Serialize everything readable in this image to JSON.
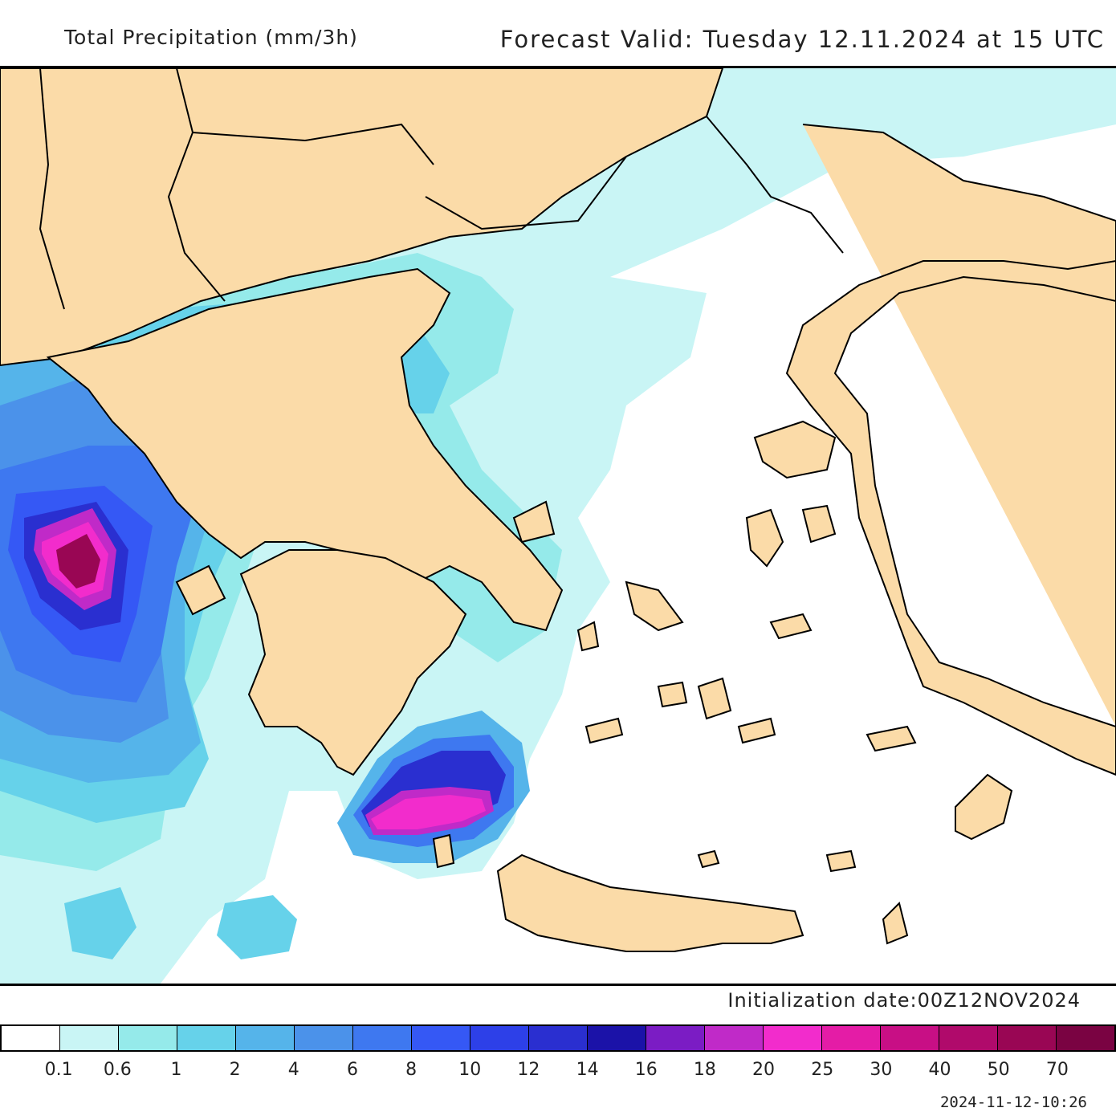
{
  "header": {
    "product_title": "Total Precipitation (mm/3h)",
    "forecast_valid": "Forecast Valid:  Tuesday 12.11.2024 at 15 UTC"
  },
  "footer": {
    "init_date": "Initialization date:00Z12NOV2024",
    "stamp": "2024-11-12-10:26"
  },
  "colors": {
    "land": "#fbdba8",
    "sea": "#ffffff",
    "border": "#000000"
  },
  "legend": {
    "colors": [
      "#ffffff",
      "#c9f5f5",
      "#95eaea",
      "#66d2ea",
      "#55b4ea",
      "#4b92ea",
      "#3e78f0",
      "#3558f5",
      "#2d40e8",
      "#2a2fd0",
      "#1b12a8",
      "#7b1cc4",
      "#c02ac8",
      "#f22ccc",
      "#e41ca6",
      "#c80f85",
      "#b00a6b",
      "#990654",
      "#7a0342"
    ],
    "labels": [
      "0.1",
      "0.6",
      "1",
      "2",
      "4",
      "6",
      "8",
      "10",
      "12",
      "14",
      "16",
      "18",
      "20",
      "25",
      "30",
      "40",
      "50",
      "70"
    ]
  }
}
